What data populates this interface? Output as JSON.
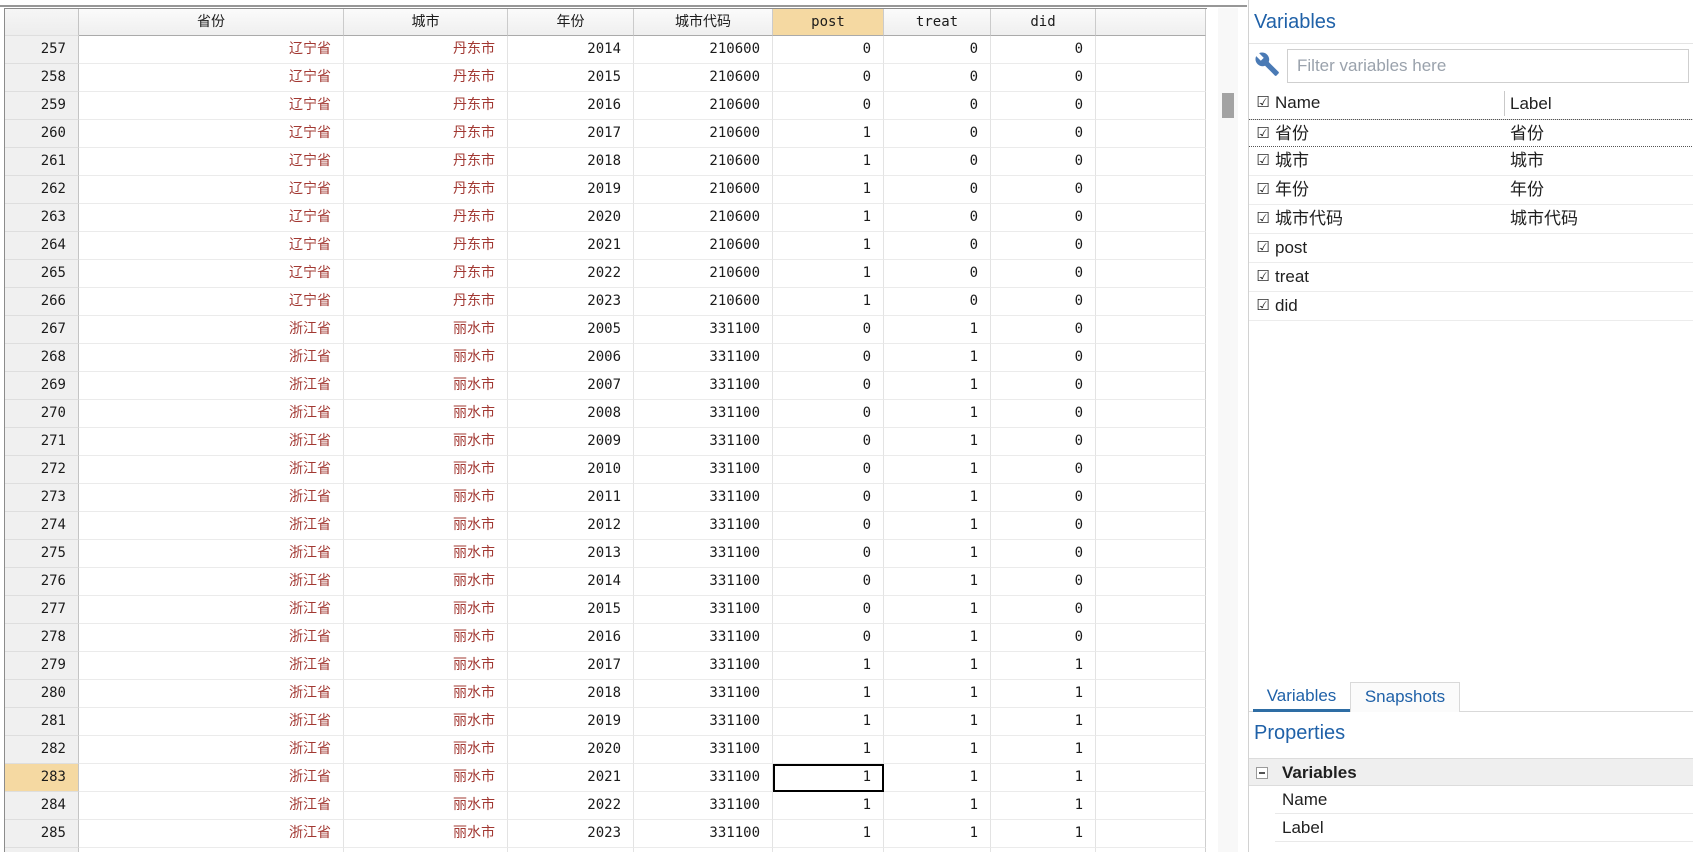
{
  "colors": {
    "accent_blue": "#1f61a8",
    "string_red": "#a23832",
    "selection_tan": "#f5d9a2",
    "scroll_thumb_gray": "#a3a3a3",
    "selected_cell_border": "#000000"
  },
  "data_table": {
    "headers": [
      "",
      "省份",
      "城市",
      "年份",
      "城市代码",
      "post",
      "treat",
      "did",
      ""
    ],
    "selected_column": "post",
    "selected_cell": {
      "row": 283,
      "column": "post"
    },
    "rows": [
      {
        "row": 257,
        "province": "辽宁省",
        "city": "丹东市",
        "year": 2014,
        "code": 210600,
        "post": 0,
        "treat": 0,
        "did": 0
      },
      {
        "row": 258,
        "province": "辽宁省",
        "city": "丹东市",
        "year": 2015,
        "code": 210600,
        "post": 0,
        "treat": 0,
        "did": 0
      },
      {
        "row": 259,
        "province": "辽宁省",
        "city": "丹东市",
        "year": 2016,
        "code": 210600,
        "post": 0,
        "treat": 0,
        "did": 0
      },
      {
        "row": 260,
        "province": "辽宁省",
        "city": "丹东市",
        "year": 2017,
        "code": 210600,
        "post": 1,
        "treat": 0,
        "did": 0
      },
      {
        "row": 261,
        "province": "辽宁省",
        "city": "丹东市",
        "year": 2018,
        "code": 210600,
        "post": 1,
        "treat": 0,
        "did": 0
      },
      {
        "row": 262,
        "province": "辽宁省",
        "city": "丹东市",
        "year": 2019,
        "code": 210600,
        "post": 1,
        "treat": 0,
        "did": 0
      },
      {
        "row": 263,
        "province": "辽宁省",
        "city": "丹东市",
        "year": 2020,
        "code": 210600,
        "post": 1,
        "treat": 0,
        "did": 0
      },
      {
        "row": 264,
        "province": "辽宁省",
        "city": "丹东市",
        "year": 2021,
        "code": 210600,
        "post": 1,
        "treat": 0,
        "did": 0
      },
      {
        "row": 265,
        "province": "辽宁省",
        "city": "丹东市",
        "year": 2022,
        "code": 210600,
        "post": 1,
        "treat": 0,
        "did": 0
      },
      {
        "row": 266,
        "province": "辽宁省",
        "city": "丹东市",
        "year": 2023,
        "code": 210600,
        "post": 1,
        "treat": 0,
        "did": 0
      },
      {
        "row": 267,
        "province": "浙江省",
        "city": "丽水市",
        "year": 2005,
        "code": 331100,
        "post": 0,
        "treat": 1,
        "did": 0
      },
      {
        "row": 268,
        "province": "浙江省",
        "city": "丽水市",
        "year": 2006,
        "code": 331100,
        "post": 0,
        "treat": 1,
        "did": 0
      },
      {
        "row": 269,
        "province": "浙江省",
        "city": "丽水市",
        "year": 2007,
        "code": 331100,
        "post": 0,
        "treat": 1,
        "did": 0
      },
      {
        "row": 270,
        "province": "浙江省",
        "city": "丽水市",
        "year": 2008,
        "code": 331100,
        "post": 0,
        "treat": 1,
        "did": 0
      },
      {
        "row": 271,
        "province": "浙江省",
        "city": "丽水市",
        "year": 2009,
        "code": 331100,
        "post": 0,
        "treat": 1,
        "did": 0
      },
      {
        "row": 272,
        "province": "浙江省",
        "city": "丽水市",
        "year": 2010,
        "code": 331100,
        "post": 0,
        "treat": 1,
        "did": 0
      },
      {
        "row": 273,
        "province": "浙江省",
        "city": "丽水市",
        "year": 2011,
        "code": 331100,
        "post": 0,
        "treat": 1,
        "did": 0
      },
      {
        "row": 274,
        "province": "浙江省",
        "city": "丽水市",
        "year": 2012,
        "code": 331100,
        "post": 0,
        "treat": 1,
        "did": 0
      },
      {
        "row": 275,
        "province": "浙江省",
        "city": "丽水市",
        "year": 2013,
        "code": 331100,
        "post": 0,
        "treat": 1,
        "did": 0
      },
      {
        "row": 276,
        "province": "浙江省",
        "city": "丽水市",
        "year": 2014,
        "code": 331100,
        "post": 0,
        "treat": 1,
        "did": 0
      },
      {
        "row": 277,
        "province": "浙江省",
        "city": "丽水市",
        "year": 2015,
        "code": 331100,
        "post": 0,
        "treat": 1,
        "did": 0
      },
      {
        "row": 278,
        "province": "浙江省",
        "city": "丽水市",
        "year": 2016,
        "code": 331100,
        "post": 0,
        "treat": 1,
        "did": 0
      },
      {
        "row": 279,
        "province": "浙江省",
        "city": "丽水市",
        "year": 2017,
        "code": 331100,
        "post": 1,
        "treat": 1,
        "did": 1
      },
      {
        "row": 280,
        "province": "浙江省",
        "city": "丽水市",
        "year": 2018,
        "code": 331100,
        "post": 1,
        "treat": 1,
        "did": 1
      },
      {
        "row": 281,
        "province": "浙江省",
        "city": "丽水市",
        "year": 2019,
        "code": 331100,
        "post": 1,
        "treat": 1,
        "did": 1
      },
      {
        "row": 282,
        "province": "浙江省",
        "city": "丽水市",
        "year": 2020,
        "code": 331100,
        "post": 1,
        "treat": 1,
        "did": 1
      },
      {
        "row": 283,
        "province": "浙江省",
        "city": "丽水市",
        "year": 2021,
        "code": 331100,
        "post": 1,
        "treat": 1,
        "did": 1
      },
      {
        "row": 284,
        "province": "浙江省",
        "city": "丽水市",
        "year": 2022,
        "code": 331100,
        "post": 1,
        "treat": 1,
        "did": 1
      },
      {
        "row": 285,
        "province": "浙江省",
        "city": "丽水市",
        "year": 2023,
        "code": 331100,
        "post": 1,
        "treat": 1,
        "did": 1
      }
    ]
  },
  "variables_panel": {
    "title": "Variables",
    "filter_placeholder": "Filter variables here",
    "columns": {
      "name": "Name",
      "label": "Label"
    },
    "header_checked": "☑",
    "variables": [
      {
        "checked": true,
        "name": "省份",
        "label": "省份",
        "focused": true
      },
      {
        "checked": true,
        "name": "城市",
        "label": "城市",
        "focused": false
      },
      {
        "checked": true,
        "name": "年份",
        "label": "年份",
        "focused": false
      },
      {
        "checked": true,
        "name": "城市代码",
        "label": "城市代码",
        "focused": false
      },
      {
        "checked": true,
        "name": "post",
        "label": "",
        "focused": false
      },
      {
        "checked": true,
        "name": "treat",
        "label": "",
        "focused": false
      },
      {
        "checked": true,
        "name": "did",
        "label": "",
        "focused": false
      }
    ]
  },
  "bottom_tabs": [
    {
      "label": "Variables",
      "active": true
    },
    {
      "label": "Snapshots",
      "active": false
    }
  ],
  "properties_panel": {
    "title": "Properties",
    "group": "Variables",
    "fields": [
      "Name",
      "Label"
    ]
  }
}
